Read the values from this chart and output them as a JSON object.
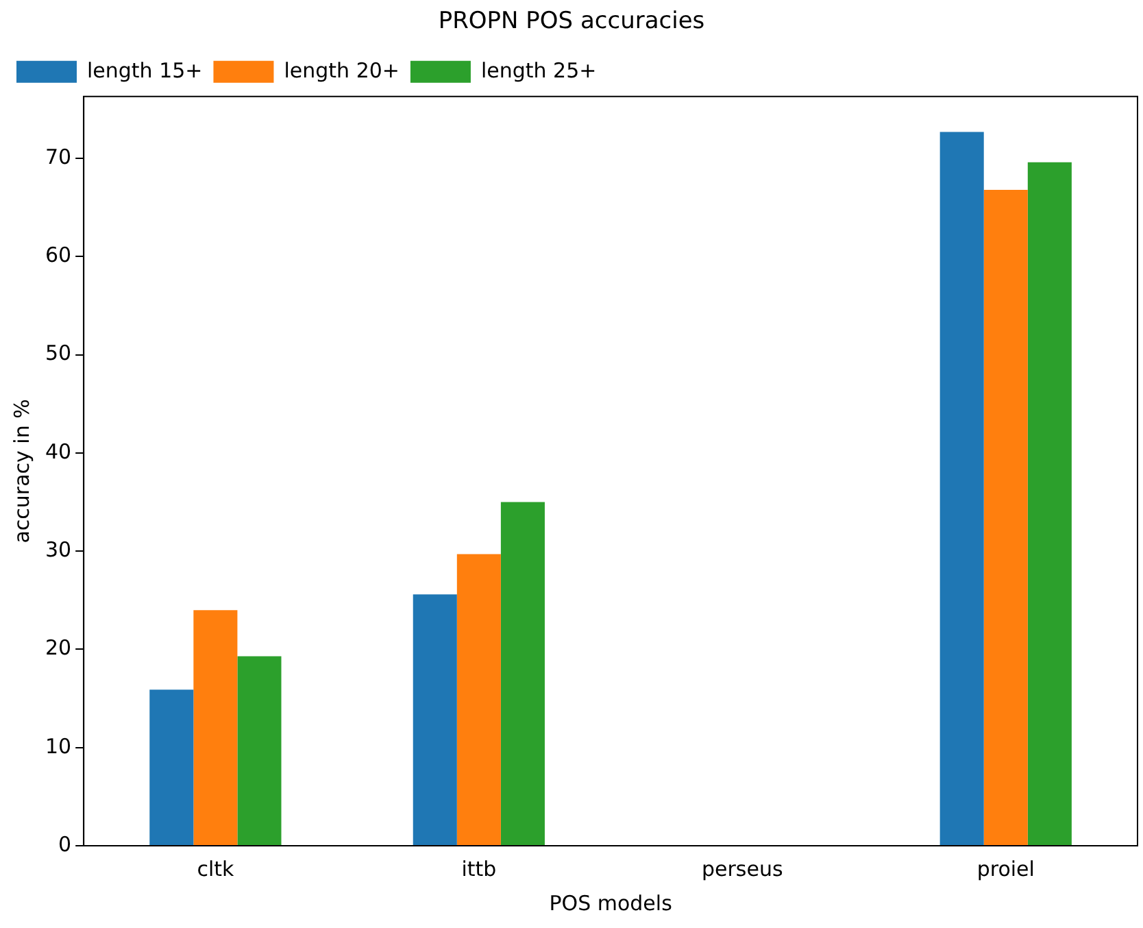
{
  "chart_data": {
    "type": "bar",
    "title": "PROPN POS accuracies",
    "xlabel": "POS models",
    "ylabel": "accuracy in %",
    "categories": [
      "cltk",
      "ittb",
      "perseus",
      "proiel"
    ],
    "series": [
      {
        "name": "length 15+",
        "color": "#1f77b4",
        "values": [
          15.9,
          25.6,
          0,
          72.7
        ]
      },
      {
        "name": "length 20+",
        "color": "#ff7f0e",
        "values": [
          24.0,
          29.7,
          0,
          66.8
        ]
      },
      {
        "name": "length 25+",
        "color": "#2ca02c",
        "values": [
          19.3,
          35.0,
          0,
          69.6
        ]
      }
    ],
    "ylim": [
      0,
      76.3
    ],
    "yticks": [
      0,
      10,
      20,
      30,
      40,
      50,
      60,
      70
    ],
    "grid": false,
    "legend": "top left"
  }
}
